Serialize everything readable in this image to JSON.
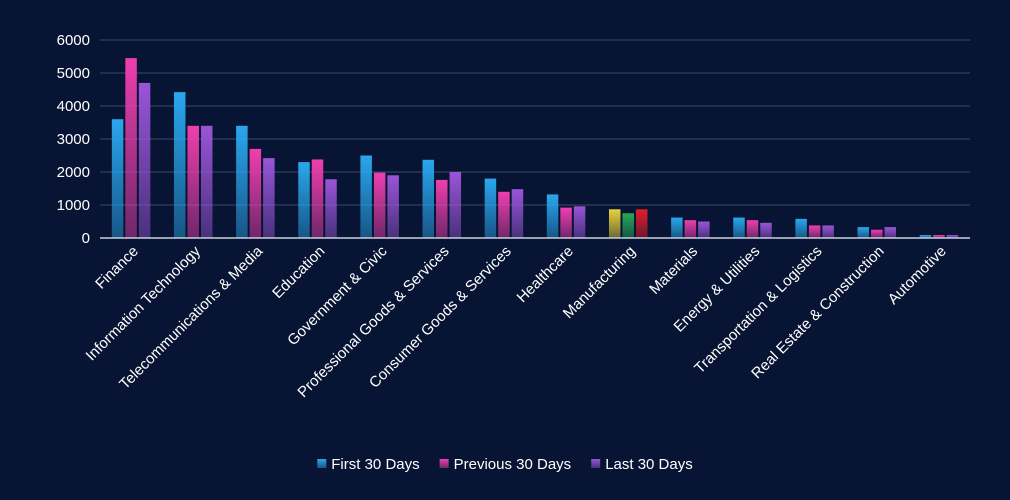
{
  "colors": {
    "background": "#081433",
    "gridline": "#3a4a6b",
    "axis": "#c9d0dc",
    "text": "#ffffff",
    "series": [
      "#2aa7ee",
      "#ee3fae",
      "#9a55d8"
    ],
    "manufacturing_bars": [
      "#e9d23a",
      "#27a95a",
      "#e41d2b"
    ]
  },
  "chart_data": {
    "type": "bar",
    "title": "",
    "xlabel": "",
    "ylabel": "",
    "ylim": [
      0,
      6000
    ],
    "yticks": [
      0,
      1000,
      2000,
      3000,
      4000,
      5000,
      6000
    ],
    "grid": true,
    "legend_position": "bottom-center",
    "categories": [
      "Finance",
      "Information Technology",
      "Telecommunications & Media",
      "Education",
      "Government & Civic",
      "Professional Goods & Services",
      "Consumer Goods & Services",
      "Healthcare",
      "Manufacturing",
      "Materials",
      "Energy & Utilities",
      "Transportation & Logistics",
      "Real Estate & Construction",
      "Automotive"
    ],
    "series": [
      {
        "name": "First 30 Days",
        "values": [
          3600,
          4420,
          3400,
          2300,
          2500,
          2370,
          1800,
          1320,
          870,
          620,
          620,
          580,
          330,
          90
        ]
      },
      {
        "name": "Previous 30 Days",
        "values": [
          5450,
          3400,
          2700,
          2380,
          1980,
          1760,
          1400,
          920,
          750,
          540,
          540,
          380,
          250,
          90
        ]
      },
      {
        "name": "Last 30 Days",
        "values": [
          4700,
          3400,
          2420,
          1780,
          1900,
          2000,
          1480,
          960,
          870,
          500,
          460,
          380,
          330,
          90
        ]
      }
    ]
  }
}
